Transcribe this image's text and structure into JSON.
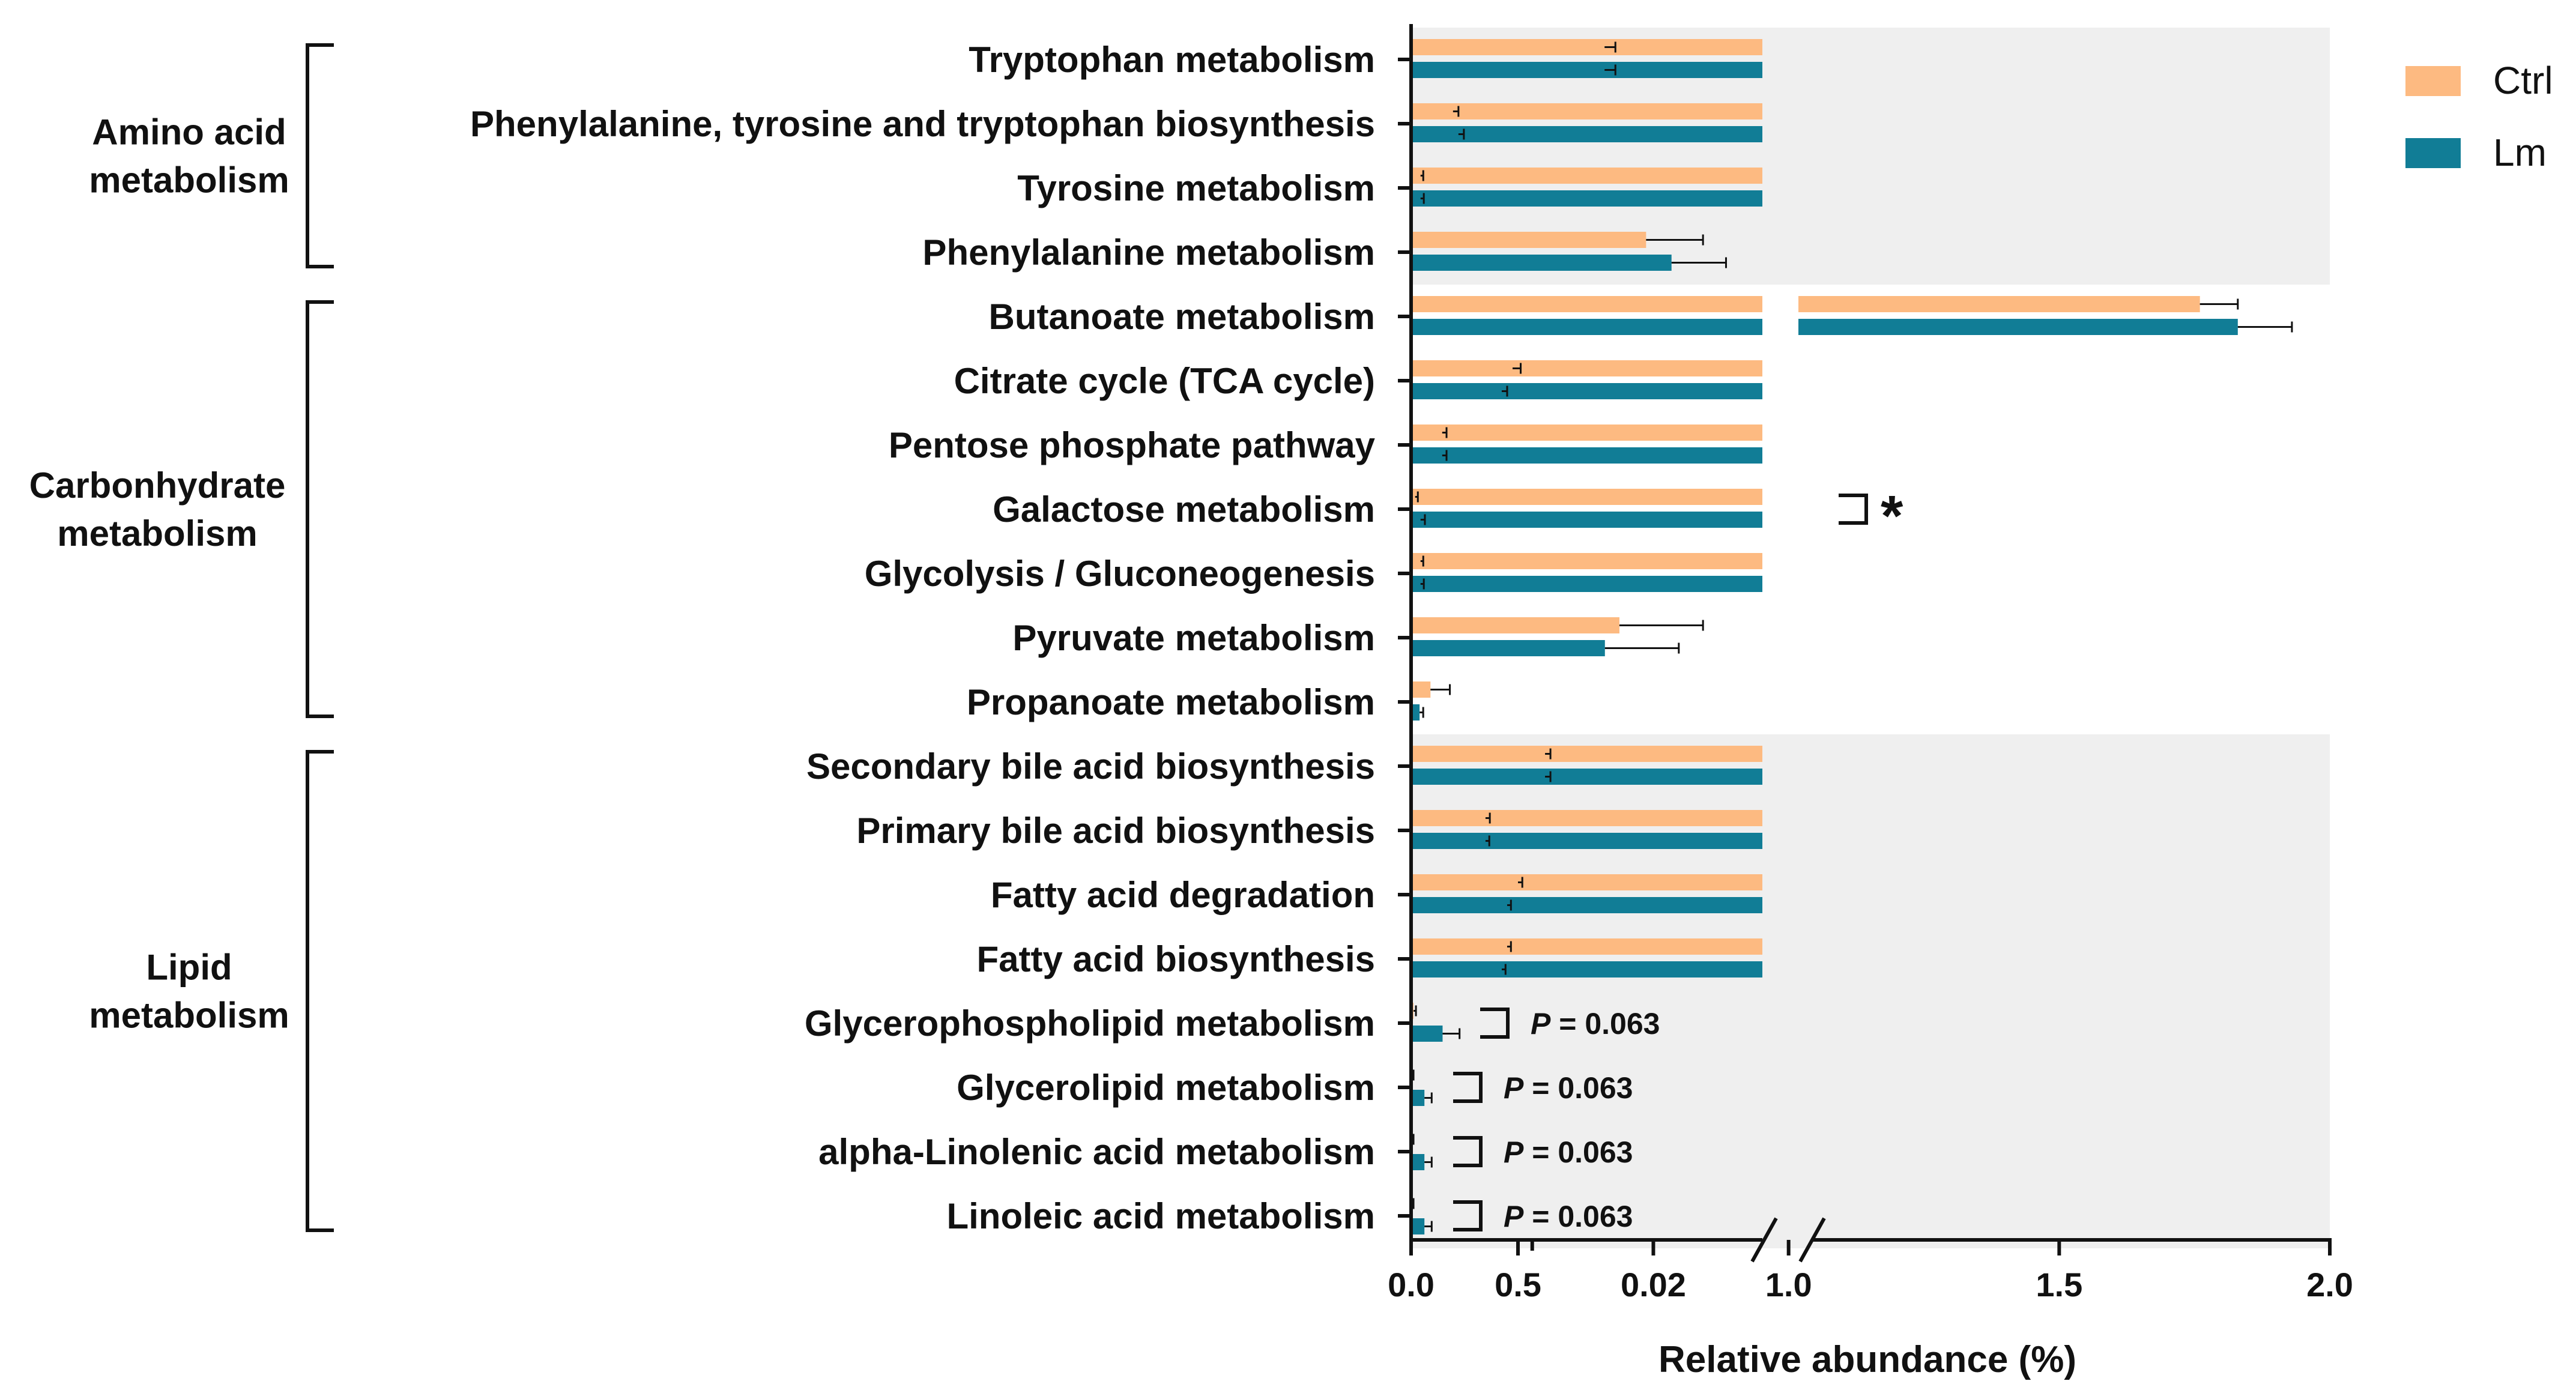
{
  "chart_data": {
    "type": "bar",
    "orientation": "horizontal",
    "xlabel": "Relative abundance (%)",
    "x_axis_break": true,
    "x_segments": [
      {
        "range": [
          0,
          0.029
        ],
        "ticks": [
          0.0,
          0.01,
          0.02
        ],
        "tick_labels": [
          "0.0",
          "",
          "0.02"
        ]
      },
      {
        "range": [
          0.3,
          2.0
        ],
        "ticks": [
          0.5,
          1.0,
          1.5,
          2.0
        ],
        "tick_labels": [
          "0.5",
          "1.0",
          "1.5",
          "2.0"
        ]
      }
    ],
    "categories": [
      "Tryptophan metabolism",
      "Phenylalanine, tyrosine and tryptophan biosynthesis",
      "Tyrosine metabolism",
      "Phenylalanine metabolism",
      "Butanoate metabolism",
      "Citrate cycle (TCA cycle)",
      "Pentose phosphate pathway",
      "Galactose metabolism",
      "Glycolysis / Gluconeogenesis",
      "Pyruvate metabolism",
      "Propanoate metabolism",
      "Secondary bile acid biosynthesis",
      "Primary bile acid biosynthesis",
      "Fatty acid degradation",
      "Fatty acid biosynthesis",
      "Glycerophospholipid metabolism",
      "Glycerolipid metabolism",
      "alpha-Linolenic acid metabolism",
      "Linoleic acid metabolism"
    ],
    "groups": [
      {
        "name": "Amino acid metabolism",
        "lines": [
          "Amino acid",
          "metabolism"
        ],
        "first": 0,
        "last": 3,
        "shaded": true
      },
      {
        "name": "Carbonhydrate metabolism",
        "lines": [
          "Carbonhydrate",
          "metabolism"
        ],
        "first": 4,
        "last": 10,
        "shaded": false
      },
      {
        "name": "Lipid metabolism",
        "lines": [
          "Lipid",
          "metabolism"
        ],
        "first": 11,
        "last": 18,
        "shaded": true
      }
    ],
    "series": [
      {
        "name": "Ctrl",
        "color": "#FDBA81",
        "values": [
          0.66,
          0.38,
          0.32,
          0.0194,
          1.76,
          0.49,
          0.36,
          0.31,
          0.32,
          0.0172,
          0.0016,
          0.55,
          0.44,
          0.5,
          0.48,
          0.0002,
          0.0001,
          0.0001,
          0.0001
        ],
        "errors": [
          0.02,
          0.01,
          0.005,
          0.0047,
          0.07,
          0.015,
          0.008,
          0.005,
          0.005,
          0.0069,
          0.0016,
          0.01,
          0.008,
          0.008,
          0.007,
          0.0002,
          0.0001,
          0.0001,
          0.0001
        ]
      },
      {
        "name": "Lm",
        "color": "#117D96",
        "values": [
          0.66,
          0.39,
          0.32,
          0.0215,
          1.83,
          0.47,
          0.36,
          0.32,
          0.32,
          0.016,
          0.0007,
          0.55,
          0.44,
          0.48,
          0.47,
          0.0026,
          0.0011,
          0.0011,
          0.0011
        ],
        "errors": [
          0.02,
          0.01,
          0.006,
          0.0045,
          0.1,
          0.01,
          0.008,
          0.008,
          0.006,
          0.0061,
          0.0003,
          0.01,
          0.007,
          0.007,
          0.007,
          0.0014,
          0.0006,
          0.0006,
          0.0006
        ]
      }
    ],
    "annotations": [
      {
        "row": 7,
        "text": "*"
      },
      {
        "row": 15,
        "text": "P = 0.063",
        "italic_part": "P",
        "rest": " = 0.063"
      },
      {
        "row": 16,
        "text": "P = 0.063",
        "italic_part": "P",
        "rest": " = 0.063"
      },
      {
        "row": 17,
        "text": "P = 0.063",
        "italic_part": "P",
        "rest": " = 0.063"
      },
      {
        "row": 18,
        "text": "P = 0.063",
        "italic_part": "P",
        "rest": " = 0.063"
      }
    ],
    "legend": {
      "position": "top-right",
      "entries": [
        "Ctrl",
        "Lm"
      ]
    }
  }
}
